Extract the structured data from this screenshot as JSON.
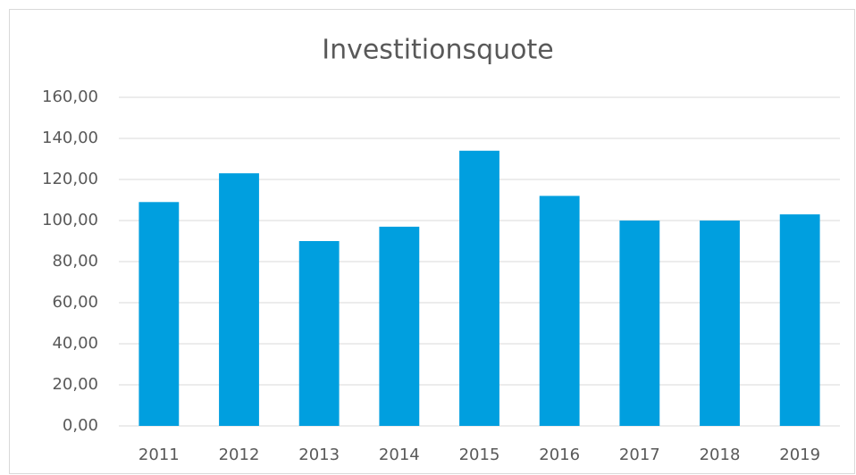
{
  "chart_data": {
    "type": "bar",
    "title": "Investitionsquote",
    "categories": [
      "2011",
      "2012",
      "2013",
      "2014",
      "2015",
      "2016",
      "2017",
      "2018",
      "2019"
    ],
    "values": [
      109,
      123,
      90,
      97,
      134,
      112,
      100,
      100,
      103
    ],
    "color": "#009fdf",
    "ylim": [
      0,
      160
    ],
    "yticks": [
      {
        "value": 0,
        "label": "0,00"
      },
      {
        "value": 20,
        "label": "20,00"
      },
      {
        "value": 40,
        "label": "40,00"
      },
      {
        "value": 60,
        "label": "60,00"
      },
      {
        "value": 80,
        "label": "80,00"
      },
      {
        "value": 100,
        "label": "100,00"
      },
      {
        "value": 120,
        "label": "120,00"
      },
      {
        "value": 140,
        "label": "140,00"
      },
      {
        "value": 160,
        "label": "160,00"
      }
    ],
    "grid": true
  }
}
